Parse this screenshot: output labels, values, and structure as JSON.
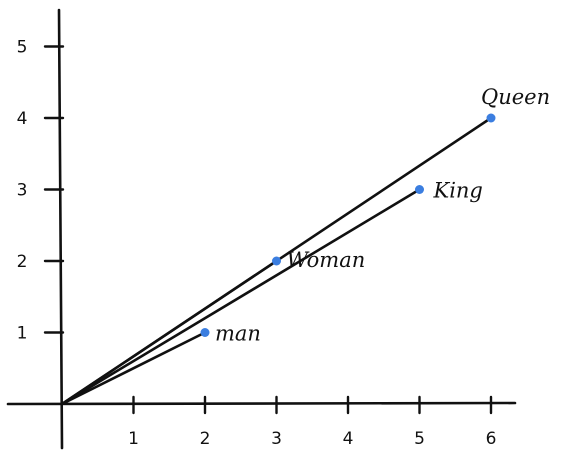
{
  "chart_data": {
    "type": "scatter",
    "x_ticks": [
      "1",
      "2",
      "3",
      "4",
      "5",
      "6"
    ],
    "y_ticks": [
      "1",
      "2",
      "3",
      "4",
      "5"
    ],
    "xlim": [
      0,
      6.2
    ],
    "ylim": [
      0,
      5.5
    ],
    "grid": false,
    "point_color": "#3b7ee0",
    "points": [
      {
        "label": "man",
        "x": 2,
        "y": 1
      },
      {
        "label": "Woman",
        "x": 3,
        "y": 2
      },
      {
        "label": "King",
        "x": 5,
        "y": 3
      },
      {
        "label": "Queen",
        "x": 6,
        "y": 4
      }
    ],
    "vectors_from_origin": [
      "man",
      "Woman",
      "King",
      "Queen"
    ]
  }
}
